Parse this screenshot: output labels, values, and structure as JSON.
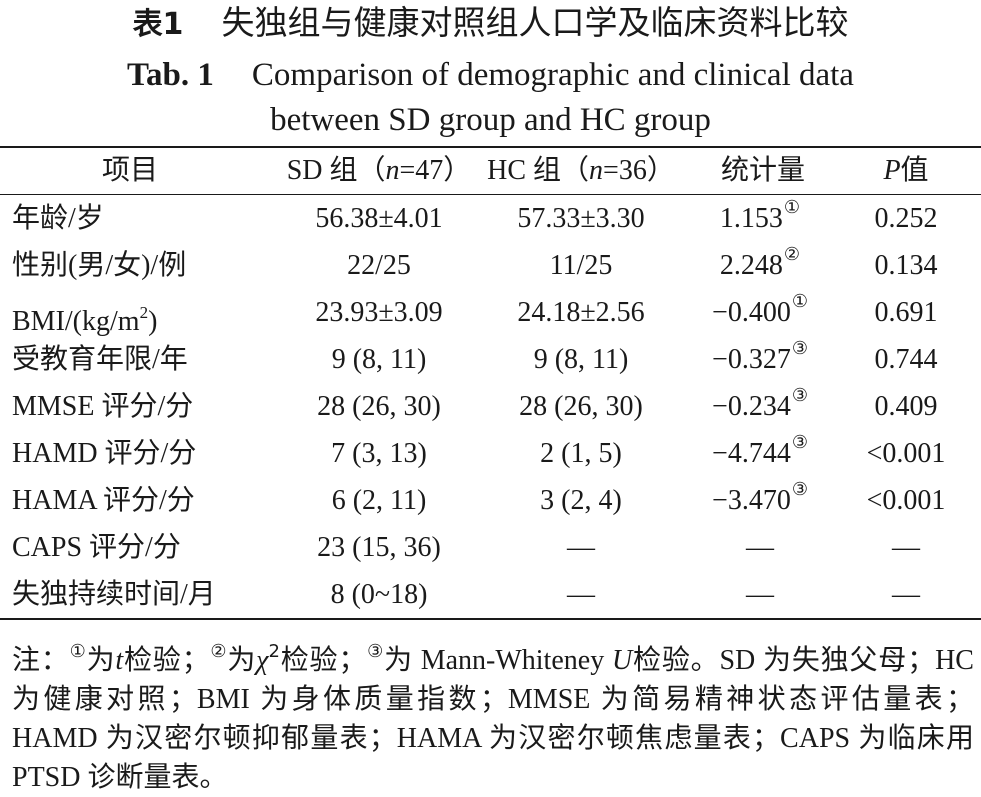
{
  "title": {
    "cn_label": "表1",
    "cn_text": "失独组与健康对照组人口学及临床资料比较",
    "en_label": "Tab. 1",
    "en_line1": "Comparison of demographic and clinical data",
    "en_line2": "between SD group and HC group"
  },
  "header": {
    "item": "项目",
    "sd_prefix": "SD 组（",
    "sd_n": "n",
    "sd_suffix": "=47）",
    "hc_prefix": "HC 组（",
    "hc_n": "n",
    "hc_suffix": "=36）",
    "stat": "统计量",
    "p_var": "P",
    "p_suffix": "值"
  },
  "rows": [
    {
      "item": "年龄/岁",
      "sd": "56.38±4.01",
      "hc": "57.33±3.30",
      "stat": "1.153",
      "mark": "①",
      "p": "0.252"
    },
    {
      "item": "性别(男/女)/例",
      "sd": "22/25",
      "hc": "11/25",
      "stat": "2.248",
      "mark": "②",
      "p": "0.134"
    },
    {
      "item_prefix": "BMI/(kg/m",
      "item_sup": "2",
      "item_suffix": ")",
      "sd": "23.93±3.09",
      "hc": "24.18±2.56",
      "stat": "−0.400",
      "mark": "①",
      "p": "0.691"
    },
    {
      "item": "受教育年限/年",
      "sd": "9 (8, 11)",
      "hc": "9 (8, 11)",
      "stat": "−0.327",
      "mark": "③",
      "p": "0.744"
    },
    {
      "item": "MMSE 评分/分",
      "sd": "28 (26, 30)",
      "hc": "28 (26, 30)",
      "stat": "−0.234",
      "mark": "③",
      "p": "0.409"
    },
    {
      "item": "HAMD 评分/分",
      "sd": "7 (3, 13)",
      "hc": "2 (1, 5)",
      "stat": "−4.744",
      "mark": "③",
      "p": "<0.001"
    },
    {
      "item": "HAMA 评分/分",
      "sd": "6 (2, 11)",
      "hc": "3 (2, 4)",
      "stat": "−3.470",
      "mark": "③",
      "p": "<0.001"
    },
    {
      "item": "CAPS 评分/分",
      "sd": "23 (15, 36)",
      "hc": "—",
      "stat": "—",
      "mark": "",
      "p": "—"
    },
    {
      "item": "失独持续时间/月",
      "sd": "8 (0~18)",
      "hc": "—",
      "stat": "—",
      "mark": "",
      "p": "—"
    }
  ],
  "note": {
    "lead": "注：",
    "m1": "①",
    "t1a": "为",
    "t1var": "t",
    "t1b": "检验；",
    "m2": "②",
    "t2a": "为",
    "t2var": "χ",
    "t2sup": "2",
    "t2b": "检验；",
    "m3": "③",
    "t3a": "为 Mann-Whiteney ",
    "t3var": "U",
    "t3b": "检验。SD 为失独父母；HC 为健康对照；BMI 为身体质量指数；MMSE 为简易精神状态评估量表；HAMD 为汉密尔顿抑郁量表；HAMA 为汉密尔顿焦虑量表；CAPS 为临床用 PTSD 诊断量表。"
  }
}
